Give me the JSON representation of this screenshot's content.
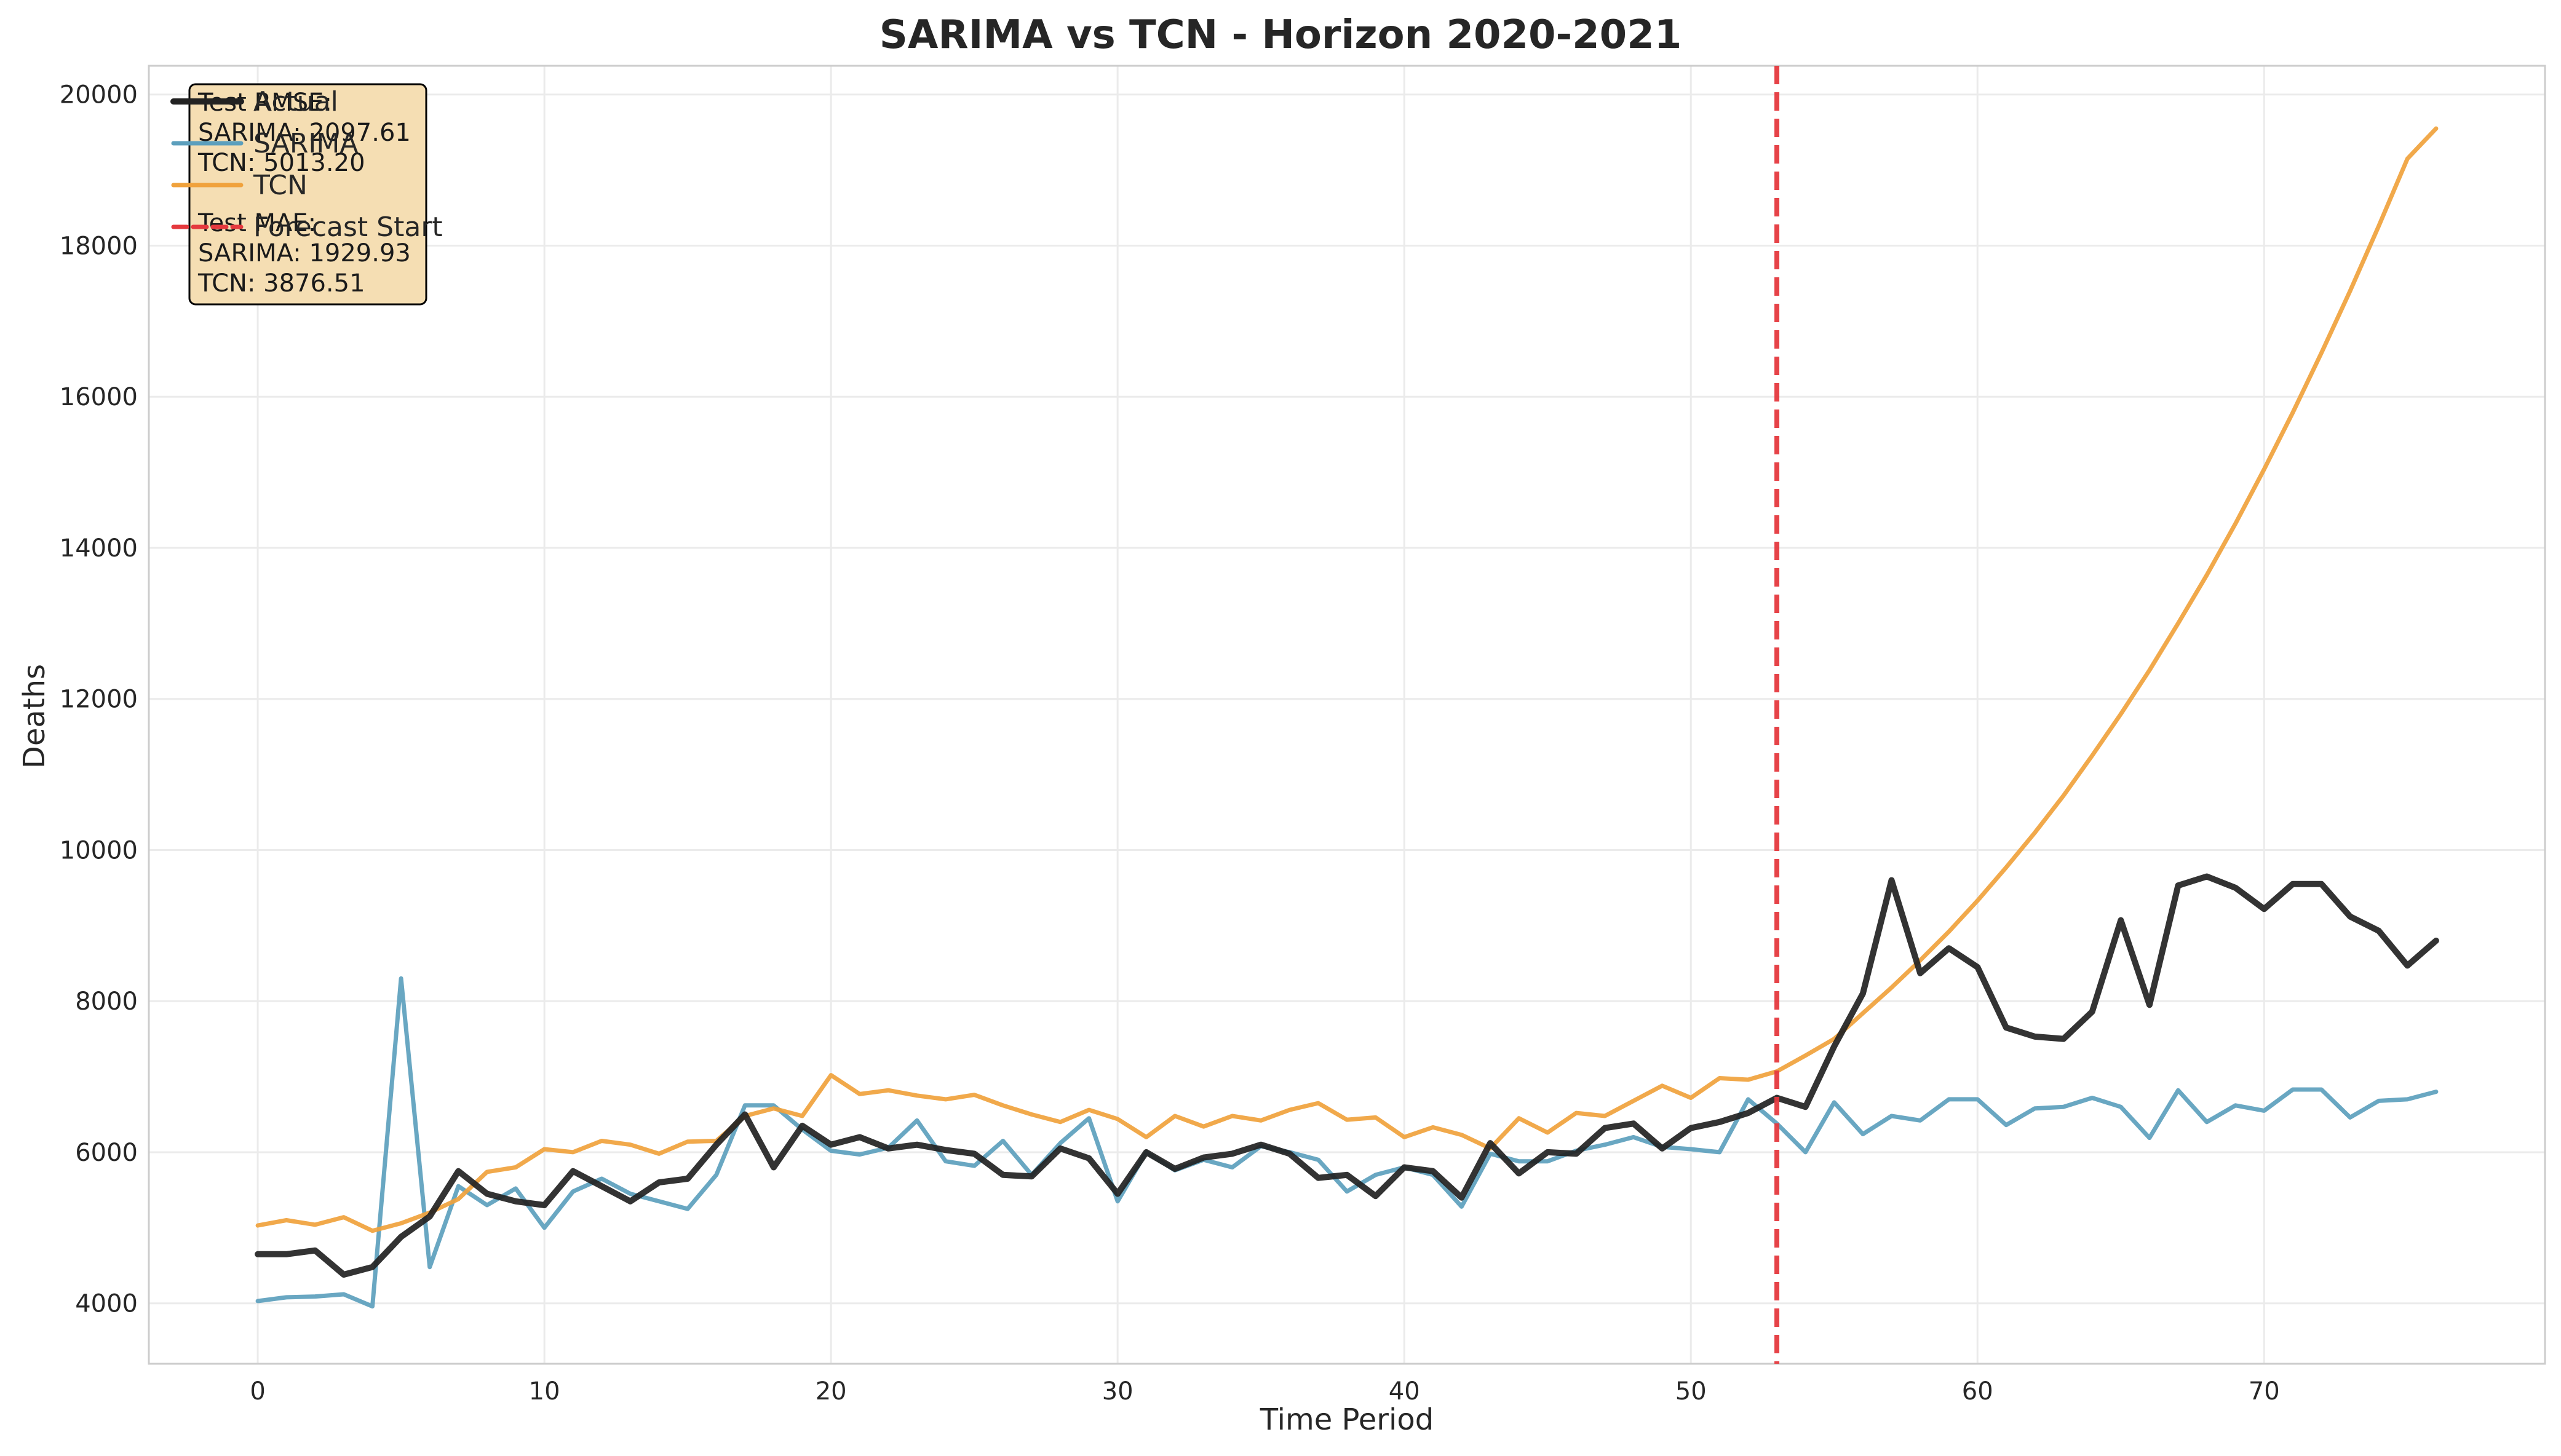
{
  "chart_data": {
    "type": "line",
    "title": "SARIMA vs TCN - Horizon 2020-2021",
    "xlabel": "Time Period",
    "ylabel": "Deaths",
    "xlim": [
      -3.8,
      79.8
    ],
    "ylim": [
      3200,
      20380
    ],
    "x_ticks": [
      0,
      10,
      20,
      30,
      40,
      50,
      60,
      70
    ],
    "y_ticks": [
      4000,
      6000,
      8000,
      10000,
      12000,
      14000,
      16000,
      18000,
      20000
    ],
    "grid": true,
    "legend_position": "top-left",
    "series": [
      {
        "name": "Actual",
        "color": "#222222",
        "values": [
          4650,
          4650,
          4700,
          4380,
          4480,
          4880,
          5150,
          5750,
          5450,
          5350,
          5300,
          5750,
          5550,
          5350,
          5600,
          5650,
          6100,
          6500,
          5800,
          6350,
          6100,
          6200,
          6050,
          6100,
          6030,
          5980,
          5700,
          5680,
          6050,
          5920,
          5450,
          6000,
          5780,
          5930,
          5980,
          6100,
          5980,
          5660,
          5700,
          5420,
          5800,
          5750,
          5400,
          6120,
          5720,
          6000,
          5980,
          6320,
          6380,
          6050,
          6320,
          6400,
          6520,
          6720,
          6600,
          7400,
          8100,
          9600,
          8370,
          8700,
          8450,
          7650,
          7530,
          7500,
          7860,
          9070,
          7950,
          9530,
          9650,
          9500,
          9220,
          9550,
          9550,
          9120,
          8930,
          8470,
          8800
        ]
      },
      {
        "name": "SARIMA",
        "color": "#5c9fbd",
        "values": [
          4030,
          4080,
          4090,
          4120,
          3960,
          8300,
          4480,
          5550,
          5300,
          5520,
          5000,
          5480,
          5650,
          5450,
          5350,
          5250,
          5700,
          6620,
          6620,
          6300,
          6020,
          5970,
          6060,
          6420,
          5880,
          5820,
          6150,
          5700,
          6120,
          6450,
          5350,
          6000,
          5760,
          5900,
          5800,
          6080,
          6000,
          5900,
          5480,
          5700,
          5800,
          5700,
          5280,
          5980,
          5880,
          5880,
          6020,
          6100,
          6200,
          6070,
          6040,
          6000,
          6700,
          6380,
          6000,
          6660,
          6240,
          6480,
          6420,
          6700,
          6700,
          6360,
          6580,
          6600,
          6720,
          6600,
          6190,
          6820,
          6400,
          6620,
          6550,
          6830,
          6830,
          6460,
          6680,
          6700,
          6800
        ]
      },
      {
        "name": "TCN",
        "color": "#f0a23c",
        "values": [
          5030,
          5100,
          5040,
          5140,
          4960,
          5060,
          5200,
          5380,
          5740,
          5800,
          6040,
          6000,
          6150,
          6100,
          5980,
          6140,
          6150,
          6480,
          6580,
          6480,
          7020,
          6770,
          6820,
          6750,
          6700,
          6760,
          6620,
          6500,
          6400,
          6560,
          6440,
          6200,
          6480,
          6340,
          6480,
          6420,
          6560,
          6650,
          6430,
          6460,
          6200,
          6330,
          6230,
          6050,
          6450,
          6260,
          6520,
          6480,
          6680,
          6880,
          6720,
          6980,
          6960,
          7070,
          7280,
          7500,
          7840,
          8180,
          8540,
          8920,
          9330,
          9770,
          10230,
          10720,
          11250,
          11800,
          12380,
          13000,
          13640,
          14320,
          15040,
          15790,
          16580,
          17400,
          18260,
          19150,
          19550
        ]
      }
    ],
    "forecast_start": {
      "x": 53,
      "label": "Forecast Start",
      "color": "#e5393e"
    },
    "metrics_box": {
      "lines": [
        "Test RMSE:",
        "SARIMA: 2097.61",
        "TCN: 5013.20",
        "",
        "Test MAE:",
        "SARIMA: 1929.93",
        "TCN: 3876.51"
      ],
      "facecolor": "#f5deb3",
      "edgecolor": "#000000"
    }
  }
}
